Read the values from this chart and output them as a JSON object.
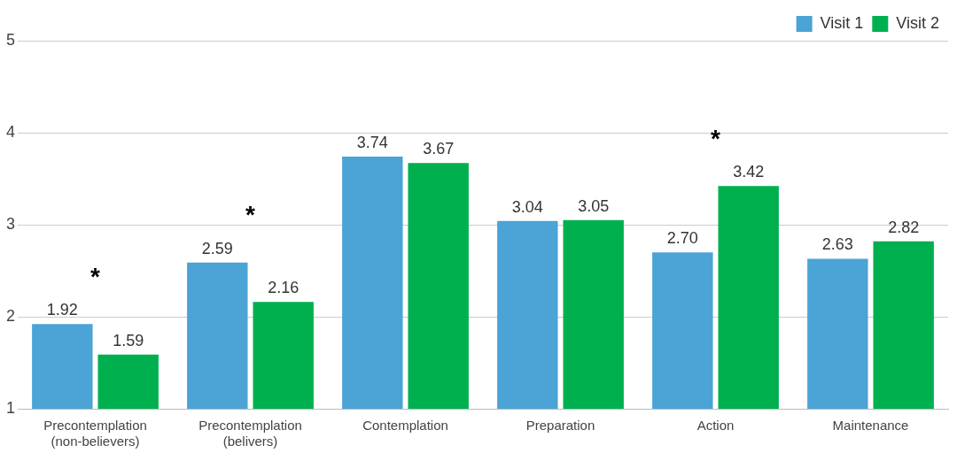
{
  "chart_data": {
    "type": "bar",
    "categories": [
      "Precontemplation (non-believers)",
      "Precontemplation (belivers)",
      "Contemplation",
      "Preparation",
      "Action",
      "Maintenance"
    ],
    "series": [
      {
        "name": "Visit 1",
        "color": "#4ba3d6",
        "values": [
          1.92,
          2.59,
          3.74,
          3.04,
          2.7,
          2.63
        ],
        "value_labels": [
          "1.92",
          "2.59",
          "3.74",
          "3.04",
          "2.70",
          "2.63"
        ]
      },
      {
        "name": "Visit 2",
        "color": "#00b04f",
        "values": [
          1.59,
          2.16,
          3.67,
          3.05,
          3.42,
          2.82
        ],
        "value_labels": [
          "1.59",
          "2.16",
          "3.67",
          "3.05",
          "3.42",
          "2.82"
        ]
      }
    ],
    "ylim": [
      1,
      5
    ],
    "yticks": [
      1,
      2,
      3,
      4,
      5
    ],
    "grid": "y",
    "legend": "top right",
    "annotations": [
      {
        "text": "*",
        "x": "Precontemplation (non-believers)",
        "y": 1.92
      },
      {
        "text": "*",
        "x": "Precontemplation (belivers)",
        "y": 2.59
      },
      {
        "text": "*",
        "x": "Action",
        "y": 3.42
      }
    ]
  }
}
